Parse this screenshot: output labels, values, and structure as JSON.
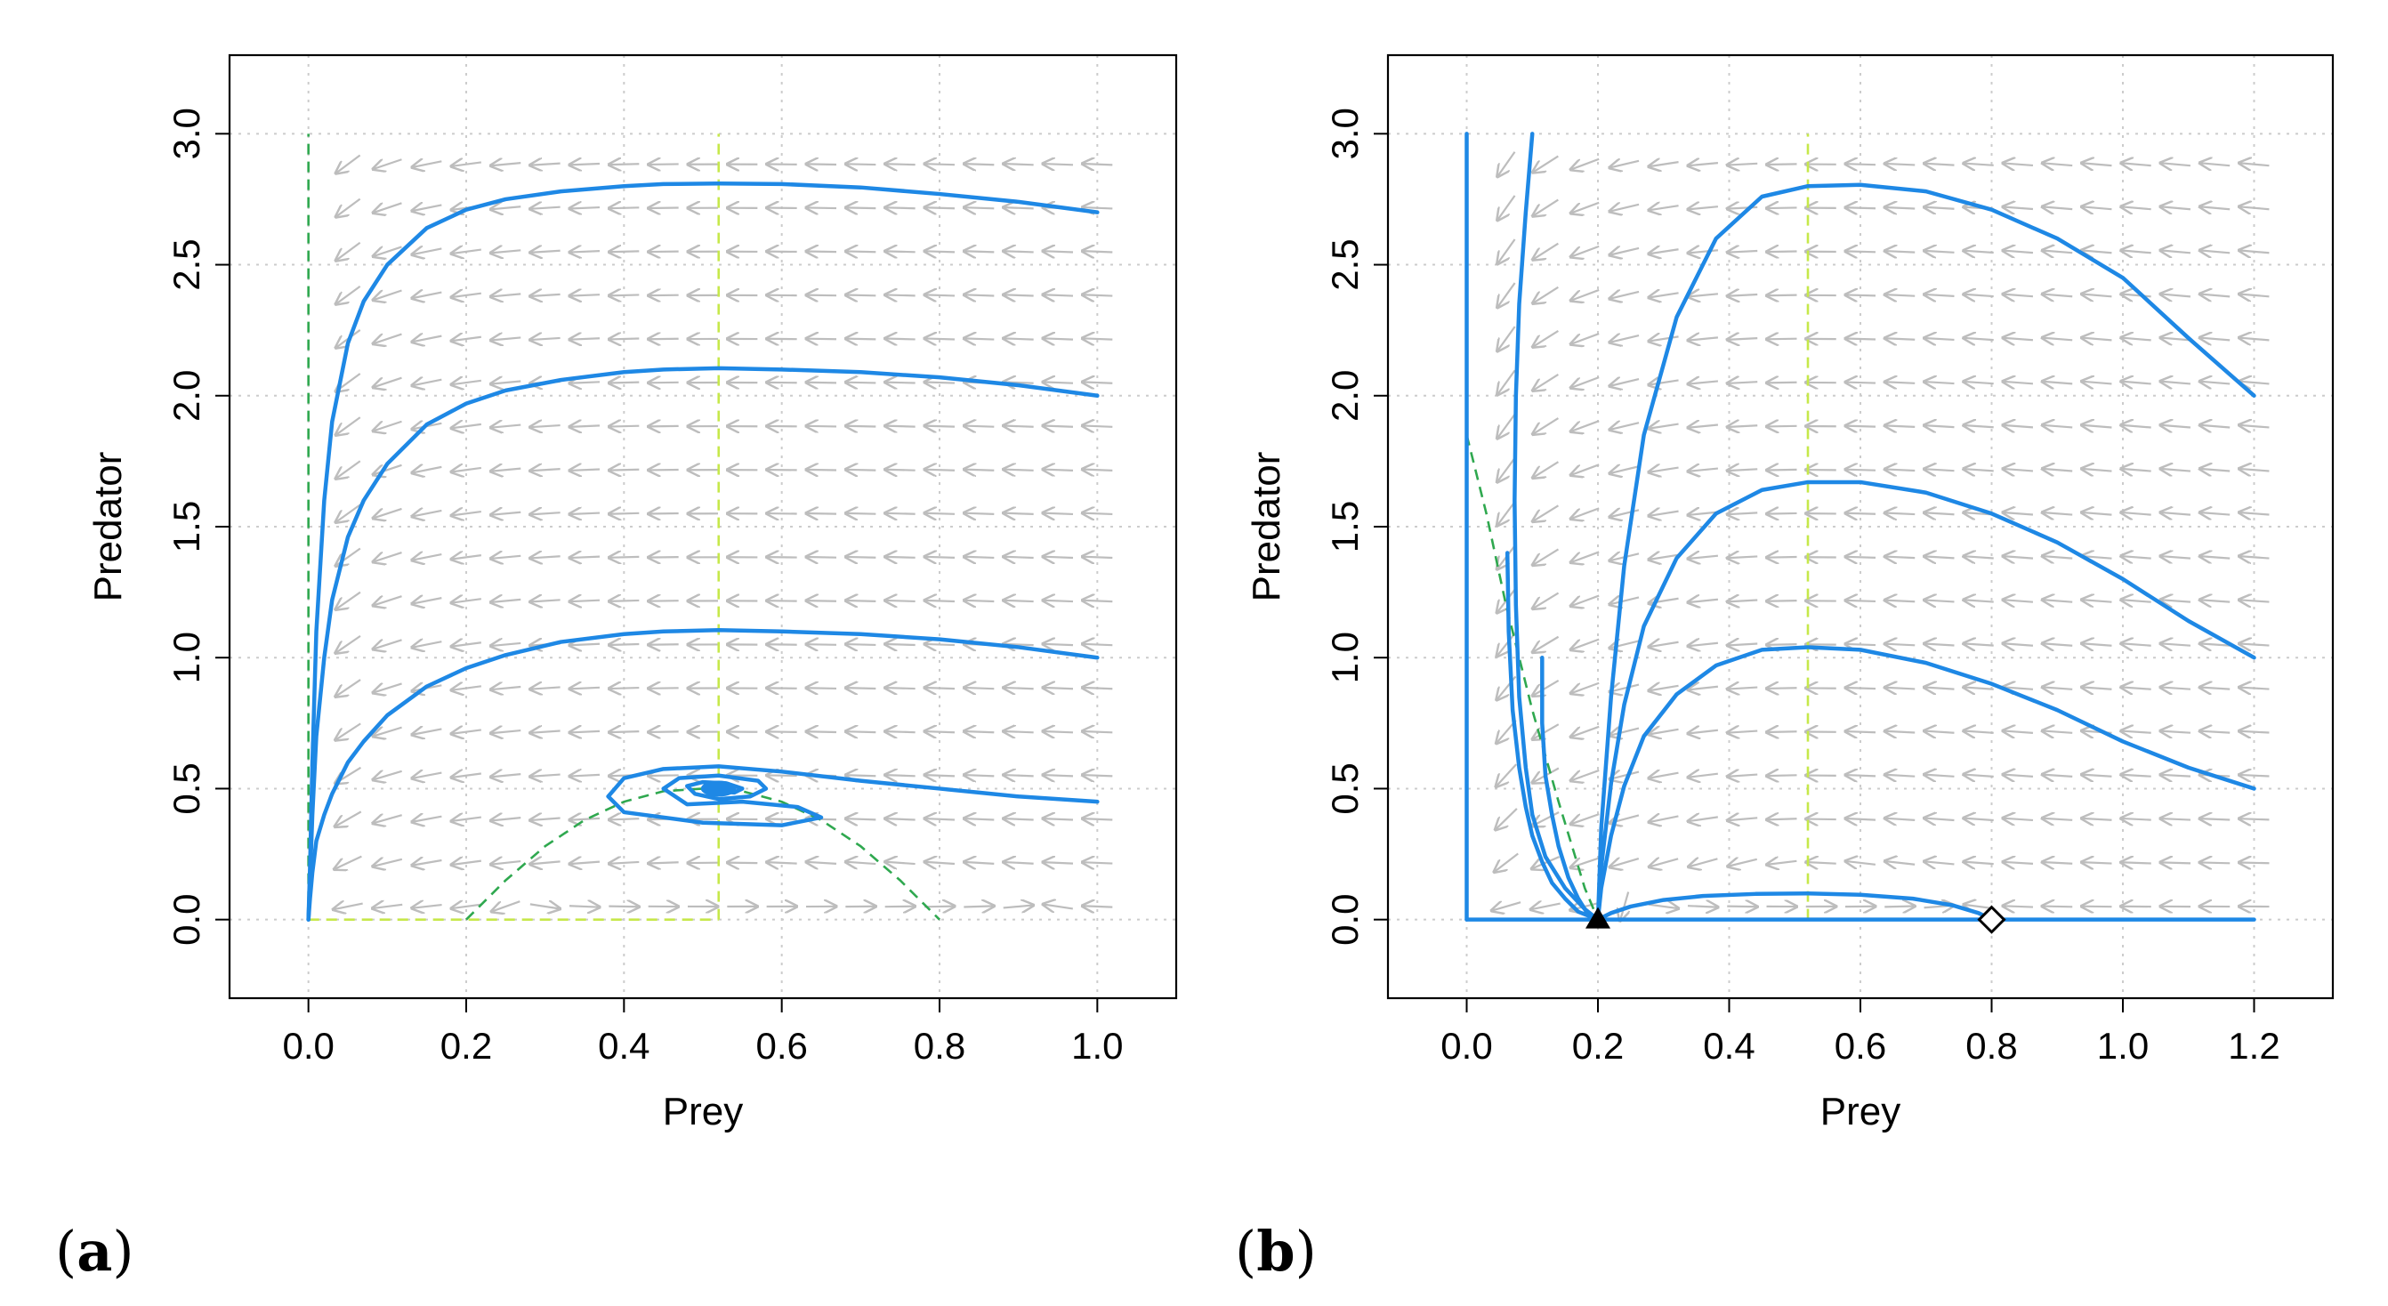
{
  "colors": {
    "trajectory": "#1e88e5",
    "prey_nullcline": "#2fa84f",
    "predator_nullcline": "#c6e84a",
    "arrows": "#bdbdbd",
    "grid": "#cccccc",
    "frame": "#000000"
  },
  "chart_data": [
    {
      "type": "line",
      "panel_label": "a",
      "xlabel": "Prey",
      "ylabel": "Predator",
      "xlim": [
        -0.1,
        1.1
      ],
      "ylim": [
        -0.3,
        3.3
      ],
      "xticks": [
        0.0,
        0.2,
        0.4,
        0.6,
        0.8,
        1.0
      ],
      "xtick_labels": [
        "0.0",
        "0.2",
        "0.4",
        "0.6",
        "0.8",
        "1.0"
      ],
      "yticks": [
        0.0,
        0.5,
        1.0,
        1.5,
        2.0,
        2.5,
        3.0
      ],
      "ytick_labels": [
        "0.0",
        "0.5",
        "1.0",
        "1.5",
        "2.0",
        "2.5",
        "3.0"
      ],
      "grid": true,
      "vector_field": {
        "x_range": [
          0.05,
          1.0
        ],
        "x_step": 0.05,
        "y_range": [
          0.05,
          3.0
        ],
        "y_step": 0.166667
      },
      "nullclines": [
        {
          "name": "prey-nullcline-axis",
          "kind": "prey",
          "x": [
            0,
            0
          ],
          "y": [
            0,
            3.0
          ]
        },
        {
          "name": "prey-nullcline-curve",
          "kind": "prey",
          "x": [
            0.2,
            0.25,
            0.3,
            0.35,
            0.4,
            0.45,
            0.5,
            0.55,
            0.6,
            0.65,
            0.7,
            0.75,
            0.8
          ],
          "y": [
            0,
            0.15,
            0.28,
            0.38,
            0.45,
            0.49,
            0.5,
            0.49,
            0.45,
            0.38,
            0.28,
            0.15,
            0
          ]
        },
        {
          "name": "predator-nullcline-vertical",
          "kind": "predator",
          "x": [
            0.52,
            0.52
          ],
          "y": [
            0,
            3.0
          ]
        },
        {
          "name": "predator-nullcline-axis",
          "kind": "predator",
          "x": [
            0,
            0.52
          ],
          "y": [
            0,
            0
          ]
        }
      ],
      "series": [
        {
          "name": "trajectory-1",
          "x": [
            1.0,
            0.9,
            0.8,
            0.7,
            0.6,
            0.52,
            0.45,
            0.4,
            0.32,
            0.25,
            0.2,
            0.15,
            0.1,
            0.07,
            0.05,
            0.03,
            0.02,
            0.01,
            0.005,
            0.002,
            0.0
          ],
          "y": [
            2.7,
            2.74,
            2.77,
            2.795,
            2.808,
            2.81,
            2.808,
            2.8,
            2.78,
            2.75,
            2.71,
            2.64,
            2.5,
            2.36,
            2.2,
            1.9,
            1.6,
            1.1,
            0.6,
            0.2,
            0.0
          ]
        },
        {
          "name": "trajectory-2",
          "x": [
            1.0,
            0.9,
            0.8,
            0.7,
            0.6,
            0.52,
            0.45,
            0.4,
            0.32,
            0.25,
            0.2,
            0.15,
            0.1,
            0.07,
            0.05,
            0.03,
            0.02,
            0.01,
            0.005,
            0.002,
            0.0
          ],
          "y": [
            2.0,
            2.04,
            2.07,
            2.09,
            2.1,
            2.105,
            2.1,
            2.09,
            2.06,
            2.02,
            1.97,
            1.89,
            1.74,
            1.6,
            1.46,
            1.22,
            1.0,
            0.7,
            0.4,
            0.15,
            0.0
          ]
        },
        {
          "name": "trajectory-3",
          "x": [
            1.0,
            0.9,
            0.8,
            0.7,
            0.6,
            0.52,
            0.45,
            0.4,
            0.32,
            0.25,
            0.2,
            0.15,
            0.1,
            0.07,
            0.05,
            0.03,
            0.02,
            0.01,
            0.005,
            0.002,
            0.0
          ],
          "y": [
            1.0,
            1.04,
            1.07,
            1.09,
            1.1,
            1.105,
            1.1,
            1.09,
            1.06,
            1.01,
            0.96,
            0.89,
            0.78,
            0.68,
            0.6,
            0.48,
            0.4,
            0.3,
            0.18,
            0.08,
            0.0
          ]
        },
        {
          "name": "trajectory-spiral",
          "x": [
            1.0,
            0.9,
            0.8,
            0.7,
            0.6,
            0.52,
            0.45,
            0.4,
            0.38,
            0.4,
            0.5,
            0.6,
            0.65,
            0.62,
            0.55,
            0.48,
            0.45,
            0.47,
            0.52,
            0.57,
            0.58,
            0.56,
            0.52,
            0.49,
            0.48,
            0.5,
            0.53,
            0.55,
            0.54,
            0.52,
            0.51,
            0.52
          ],
          "y": [
            0.45,
            0.47,
            0.5,
            0.53,
            0.565,
            0.585,
            0.575,
            0.54,
            0.47,
            0.41,
            0.37,
            0.36,
            0.39,
            0.43,
            0.45,
            0.44,
            0.5,
            0.54,
            0.55,
            0.53,
            0.5,
            0.47,
            0.46,
            0.48,
            0.51,
            0.525,
            0.52,
            0.5,
            0.485,
            0.49,
            0.5,
            0.5
          ]
        }
      ],
      "equilibria": [
        {
          "name": "coexistence-point",
          "x": 0.52,
          "y": 0.5,
          "marker": "filled-circle"
        }
      ]
    },
    {
      "type": "line",
      "panel_label": "b",
      "xlabel": "Prey",
      "ylabel": "Predator",
      "xlim": [
        -0.12,
        1.32
      ],
      "ylim": [
        -0.3,
        3.3
      ],
      "xticks": [
        0.0,
        0.2,
        0.4,
        0.6,
        0.8,
        1.0,
        1.2
      ],
      "xtick_labels": [
        "0.0",
        "0.2",
        "0.4",
        "0.6",
        "0.8",
        "1.0",
        "1.2"
      ],
      "yticks": [
        0.0,
        0.5,
        1.0,
        1.5,
        2.0,
        2.5,
        3.0
      ],
      "ytick_labels": [
        "0.0",
        "0.5",
        "1.0",
        "1.5",
        "2.0",
        "2.5",
        "3.0"
      ],
      "grid": true,
      "vector_field": {
        "x_range": [
          0.06,
          1.2
        ],
        "x_step": 0.06,
        "y_range": [
          0.05,
          3.0
        ],
        "y_step": 0.166667
      },
      "nullclines": [
        {
          "name": "prey-nullcline-curve",
          "kind": "prey",
          "x": [
            0.0,
            0.03,
            0.06,
            0.1,
            0.14,
            0.18,
            0.2
          ],
          "y": [
            1.85,
            1.55,
            1.2,
            0.8,
            0.45,
            0.12,
            0.0
          ]
        },
        {
          "name": "predator-nullcline-vertical",
          "kind": "predator",
          "x": [
            0.52,
            0.52
          ],
          "y": [
            0,
            3.0
          ]
        }
      ],
      "series": [
        {
          "name": "trajectory-axis-vertical",
          "x": [
            0,
            0
          ],
          "y": [
            3.0,
            0.0
          ]
        },
        {
          "name": "trajectory-axis-horizontal",
          "x": [
            0,
            1.2
          ],
          "y": [
            0.0,
            0.0
          ]
        },
        {
          "name": "trajectory-left-1",
          "x": [
            0.1,
            0.09,
            0.08,
            0.075,
            0.073,
            0.075,
            0.08,
            0.09,
            0.1,
            0.12,
            0.15,
            0.18,
            0.2
          ],
          "y": [
            3.0,
            2.7,
            2.35,
            2.0,
            1.6,
            1.2,
            0.85,
            0.58,
            0.4,
            0.24,
            0.12,
            0.04,
            0.0
          ]
        },
        {
          "name": "trajectory-left-2",
          "x": [
            0.062,
            0.064,
            0.07,
            0.08,
            0.09,
            0.1,
            0.115,
            0.13,
            0.15,
            0.17,
            0.19,
            0.2
          ],
          "y": [
            1.4,
            1.1,
            0.8,
            0.58,
            0.43,
            0.32,
            0.22,
            0.14,
            0.08,
            0.03,
            0.01,
            0.0
          ]
        },
        {
          "name": "trajectory-left-3",
          "x": [
            0.115,
            0.115,
            0.12,
            0.13,
            0.14,
            0.155,
            0.17,
            0.185,
            0.2
          ],
          "y": [
            1.0,
            0.75,
            0.55,
            0.4,
            0.28,
            0.16,
            0.08,
            0.02,
            0.0
          ]
        },
        {
          "name": "trajectory-1",
          "x": [
            1.2,
            1.1,
            1.0,
            0.9,
            0.8,
            0.7,
            0.6,
            0.52,
            0.45,
            0.38,
            0.32,
            0.27,
            0.24,
            0.22,
            0.205,
            0.2
          ],
          "y": [
            2.0,
            2.22,
            2.45,
            2.6,
            2.71,
            2.78,
            2.805,
            2.8,
            2.76,
            2.6,
            2.3,
            1.85,
            1.35,
            0.85,
            0.35,
            0.0
          ]
        },
        {
          "name": "trajectory-2",
          "x": [
            1.2,
            1.1,
            1.0,
            0.9,
            0.8,
            0.7,
            0.6,
            0.52,
            0.45,
            0.38,
            0.32,
            0.27,
            0.24,
            0.22,
            0.205,
            0.2
          ],
          "y": [
            1.0,
            1.14,
            1.3,
            1.44,
            1.55,
            1.63,
            1.67,
            1.67,
            1.64,
            1.55,
            1.38,
            1.12,
            0.82,
            0.52,
            0.2,
            0.0
          ]
        },
        {
          "name": "trajectory-3",
          "x": [
            1.2,
            1.1,
            1.0,
            0.9,
            0.8,
            0.7,
            0.6,
            0.52,
            0.45,
            0.38,
            0.32,
            0.27,
            0.24,
            0.22,
            0.205,
            0.2
          ],
          "y": [
            0.5,
            0.58,
            0.68,
            0.8,
            0.9,
            0.98,
            1.03,
            1.04,
            1.03,
            0.97,
            0.86,
            0.7,
            0.51,
            0.32,
            0.12,
            0.0
          ]
        },
        {
          "name": "trajectory-low",
          "x": [
            0.8,
            0.78,
            0.74,
            0.68,
            0.6,
            0.52,
            0.44,
            0.36,
            0.3,
            0.25,
            0.22,
            0.2
          ],
          "y": [
            0.0,
            0.025,
            0.055,
            0.08,
            0.095,
            0.1,
            0.098,
            0.09,
            0.075,
            0.05,
            0.025,
            0.0
          ]
        }
      ],
      "equilibria": [
        {
          "name": "saddle-point",
          "x": 0.2,
          "y": 0.0,
          "marker": "filled-triangle"
        },
        {
          "name": "prey-only-point",
          "x": 0.8,
          "y": 0.0,
          "marker": "open-diamond"
        }
      ]
    }
  ]
}
